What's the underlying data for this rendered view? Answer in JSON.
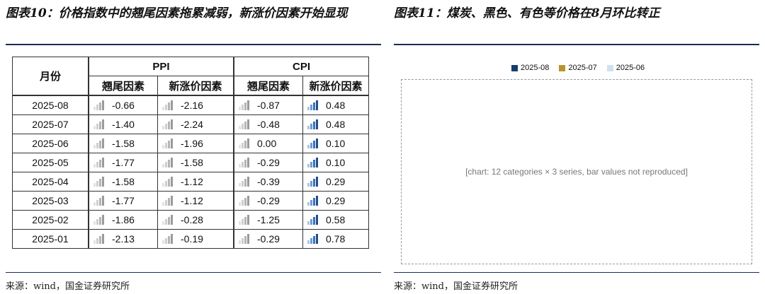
{
  "left_title": "图表10：价格指数中的翘尾因素拖累减弱，新涨价因素开始显现",
  "right_title": "图表11：煤炭、黑色、有色等价格在8月环比转正",
  "table": {
    "month_header": "月份",
    "group_ppi": "PPI",
    "group_cpi": "CPI",
    "sub_headers": [
      "翘尾因素",
      "新涨价因素",
      "翘尾因素",
      "新涨价因素"
    ],
    "rows": [
      {
        "month": "2025-08",
        "values": [
          "-0.66",
          "-2.16",
          "-0.87",
          "0.48"
        ]
      },
      {
        "month": "2025-07",
        "values": [
          "-1.40",
          "-2.24",
          "-0.48",
          "0.48"
        ]
      },
      {
        "month": "2025-06",
        "values": [
          "-1.58",
          "-1.96",
          "0.00",
          "0.10"
        ]
      },
      {
        "month": "2025-05",
        "values": [
          "-1.77",
          "-1.58",
          "-0.29",
          "0.10"
        ]
      },
      {
        "month": "2025-04",
        "values": [
          "-1.58",
          "-1.12",
          "-0.39",
          "0.29"
        ]
      },
      {
        "month": "2025-03",
        "values": [
          "-1.77",
          "-1.12",
          "-0.29",
          "0.29"
        ]
      },
      {
        "month": "2025-02",
        "values": [
          "-1.86",
          "-0.28",
          "-1.25",
          "0.58"
        ]
      },
      {
        "month": "2025-01",
        "values": [
          "-2.13",
          "-0.19",
          "-0.29",
          "0.78"
        ]
      }
    ]
  },
  "chart_legend": [
    {
      "label": "2025-08",
      "color": "#123f6b"
    },
    {
      "label": "2025-07",
      "color": "#b8962e"
    },
    {
      "label": "2025-06",
      "color": "#cfe0f0"
    }
  ],
  "source_left": "来源：wind，国金证券研究所",
  "source_right": "来源：wind，国金证券研究所"
}
